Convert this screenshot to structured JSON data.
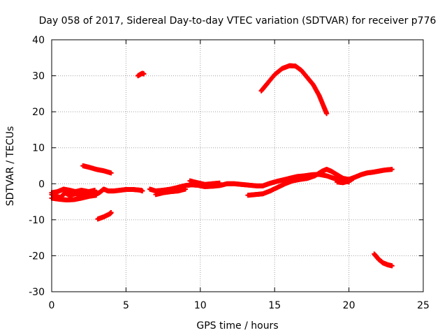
{
  "chart_data": {
    "type": "scatter",
    "title": "Day 058 of 2017, Sidereal Day-to-day VTEC variation (SDTVAR) for receiver p776",
    "xlabel": "GPS time / hours",
    "ylabel": "SDTVAR / TECUs",
    "xlim": [
      0,
      25
    ],
    "ylim": [
      -30,
      40
    ],
    "xticks": [
      0,
      5,
      10,
      15,
      20,
      25
    ],
    "yticks": [
      -30,
      -20,
      -10,
      0,
      10,
      20,
      30,
      40
    ],
    "grid": true,
    "marker": "+",
    "series": [
      {
        "name": "SDTVAR",
        "color": "#ff0000",
        "segments": [
          [
            [
              0.0,
              -3.0
            ],
            [
              0.3,
              -3.5
            ],
            [
              0.6,
              -3.8
            ],
            [
              0.9,
              -2.5
            ],
            [
              1.2,
              -3.2
            ],
            [
              1.6,
              -2.8
            ],
            [
              2.0,
              -3.0
            ],
            [
              2.4,
              -2.6
            ],
            [
              2.8,
              -2.8
            ],
            [
              3.2,
              -2.5
            ],
            [
              3.5,
              -1.5
            ],
            [
              3.8,
              -2.0
            ],
            [
              4.2,
              -2.0
            ],
            [
              4.6,
              -1.8
            ],
            [
              5.0,
              -1.6
            ],
            [
              5.5,
              -1.6
            ],
            [
              6.0,
              -1.8
            ],
            [
              6.1,
              -2.0
            ]
          ],
          [
            [
              0.0,
              -2.5
            ],
            [
              0.4,
              -2.2
            ],
            [
              0.8,
              -1.5
            ],
            [
              1.2,
              -1.8
            ],
            [
              1.6,
              -2.2
            ],
            [
              2.0,
              -1.8
            ],
            [
              2.5,
              -2.2
            ],
            [
              2.9,
              -1.8
            ]
          ],
          [
            [
              0.0,
              -4.0
            ],
            [
              0.5,
              -4.3
            ],
            [
              1.0,
              -4.5
            ],
            [
              1.5,
              -4.4
            ],
            [
              2.0,
              -4.0
            ],
            [
              2.5,
              -3.5
            ],
            [
              3.0,
              -3.2
            ]
          ],
          [
            [
              2.1,
              5.0
            ],
            [
              2.5,
              4.6
            ],
            [
              3.0,
              4.0
            ],
            [
              3.5,
              3.6
            ],
            [
              4.0,
              3.0
            ]
          ],
          [
            [
              3.1,
              -9.8
            ],
            [
              3.5,
              -9.2
            ],
            [
              3.9,
              -8.4
            ],
            [
              4.0,
              -8.0
            ]
          ],
          [
            [
              5.8,
              30.0
            ],
            [
              6.1,
              30.7
            ],
            [
              6.2,
              30.5
            ]
          ],
          [
            [
              6.6,
              -1.5
            ],
            [
              7.0,
              -2.0
            ],
            [
              7.5,
              -1.8
            ],
            [
              8.0,
              -1.5
            ],
            [
              8.5,
              -1.0
            ],
            [
              9.0,
              -0.5
            ],
            [
              9.4,
              -0.3
            ],
            [
              9.8,
              -0.4
            ],
            [
              10.3,
              -0.8
            ],
            [
              10.8,
              -0.7
            ],
            [
              11.3,
              -0.5
            ],
            [
              11.8,
              0.0
            ],
            [
              12.3,
              0.0
            ],
            [
              12.8,
              -0.2
            ],
            [
              13.3,
              -0.4
            ],
            [
              13.8,
              -0.6
            ],
            [
              14.2,
              -0.6
            ],
            [
              14.6,
              0.0
            ],
            [
              15.0,
              0.5
            ],
            [
              15.5,
              1.0
            ],
            [
              16.0,
              1.5
            ],
            [
              16.5,
              2.0
            ],
            [
              17.0,
              2.2
            ],
            [
              17.5,
              2.5
            ],
            [
              18.0,
              2.6
            ],
            [
              18.5,
              2.2
            ],
            [
              19.0,
              1.5
            ],
            [
              19.5,
              0.8
            ],
            [
              20.0,
              0.5
            ]
          ],
          [
            [
              7.0,
              -3.0
            ],
            [
              7.5,
              -2.5
            ],
            [
              8.0,
              -2.2
            ],
            [
              8.5,
              -2.0
            ],
            [
              9.0,
              -1.5
            ]
          ],
          [
            [
              9.3,
              0.8
            ],
            [
              9.8,
              0.3
            ],
            [
              10.3,
              -0.2
            ],
            [
              10.8,
              0.0
            ],
            [
              11.3,
              0.2
            ]
          ],
          [
            [
              13.2,
              -3.2
            ],
            [
              13.7,
              -3.0
            ],
            [
              14.2,
              -2.8
            ],
            [
              14.7,
              -2.0
            ],
            [
              15.2,
              -1.0
            ],
            [
              15.7,
              0.0
            ],
            [
              16.2,
              0.8
            ],
            [
              16.7,
              1.2
            ],
            [
              17.2,
              1.5
            ],
            [
              17.7,
              2.2
            ],
            [
              18.2,
              3.5
            ],
            [
              18.5,
              4.0
            ],
            [
              18.8,
              3.5
            ],
            [
              19.2,
              2.5
            ],
            [
              19.6,
              1.5
            ],
            [
              20.0,
              1.2
            ],
            [
              20.4,
              1.8
            ],
            [
              20.8,
              2.5
            ],
            [
              21.2,
              3.0
            ],
            [
              21.6,
              3.2
            ],
            [
              22.0,
              3.5
            ],
            [
              22.4,
              3.8
            ],
            [
              22.9,
              4.0
            ]
          ],
          [
            [
              19.2,
              0.5
            ],
            [
              19.6,
              0.3
            ],
            [
              20.0,
              0.8
            ],
            [
              20.3,
              1.5
            ]
          ],
          [
            [
              14.1,
              25.8
            ],
            [
              14.5,
              27.8
            ],
            [
              15.0,
              30.3
            ],
            [
              15.5,
              32.0
            ],
            [
              16.0,
              32.8
            ],
            [
              16.4,
              32.7
            ],
            [
              16.8,
              31.5
            ],
            [
              17.2,
              29.5
            ],
            [
              17.6,
              27.5
            ],
            [
              18.0,
              24.5
            ],
            [
              18.3,
              21.5
            ],
            [
              18.5,
              19.5
            ]
          ],
          [
            [
              21.7,
              -19.5
            ],
            [
              22.0,
              -21.0
            ],
            [
              22.3,
              -22.0
            ],
            [
              22.6,
              -22.5
            ],
            [
              22.9,
              -22.8
            ]
          ]
        ]
      }
    ]
  }
}
